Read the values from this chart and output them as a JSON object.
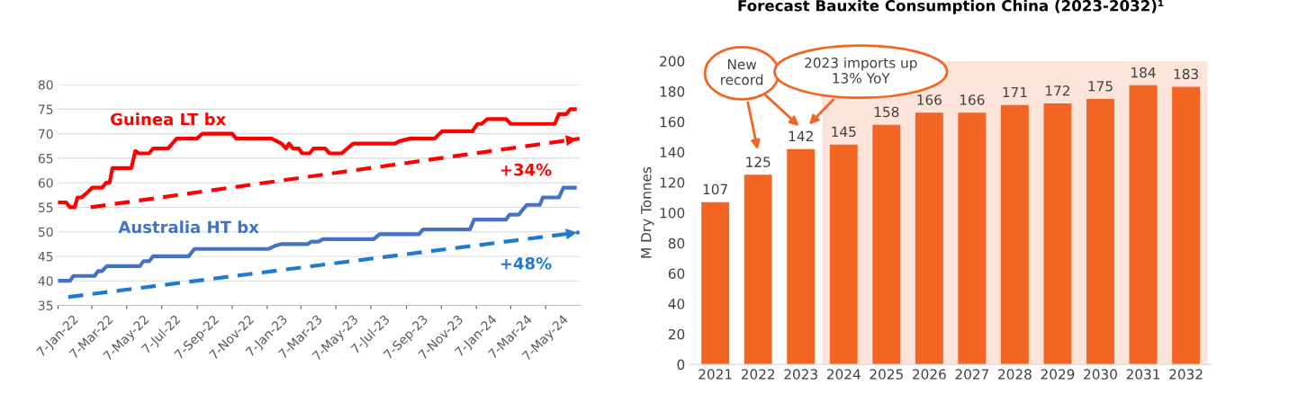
{
  "chart_data": [
    {
      "type": "line",
      "xlim": [
        "2022-01-07",
        "2024-07-06"
      ],
      "ylim": [
        35,
        80
      ],
      "yticks": [
        35,
        40,
        45,
        50,
        55,
        60,
        65,
        70,
        75,
        80
      ],
      "xticks": [
        {
          "value": "2022-01-07",
          "label": "7-Jan-22"
        },
        {
          "value": "2022-03-07",
          "label": "7-Mar-22"
        },
        {
          "value": "2022-05-07",
          "label": "7-May-22"
        },
        {
          "value": "2022-07-07",
          "label": "7-Jul-22"
        },
        {
          "value": "2022-09-07",
          "label": "7-Sep-22"
        },
        {
          "value": "2022-11-07",
          "label": "7-Nov-22"
        },
        {
          "value": "2023-01-07",
          "label": "7-Jan-23"
        },
        {
          "value": "2023-03-07",
          "label": "7-Mar-23"
        },
        {
          "value": "2023-05-07",
          "label": "7-May-23"
        },
        {
          "value": "2023-07-07",
          "label": "7-Jul-23"
        },
        {
          "value": "2023-09-07",
          "label": "7-Sep-23"
        },
        {
          "value": "2023-11-07",
          "label": "7-Nov-23"
        },
        {
          "value": "2024-01-07",
          "label": "7-Jan-24"
        },
        {
          "value": "2024-03-07",
          "label": "7-Mar-24"
        },
        {
          "value": "2024-05-07",
          "label": "7-May-24"
        }
      ],
      "grid": "y",
      "line_style": "solid",
      "marker": "none",
      "series": [
        {
          "name": "Guinea LT bx",
          "color": "#ff0000",
          "x": [
            "2022-01-07",
            "2022-01-21",
            "2022-01-28",
            "2022-02-05",
            "2022-02-10",
            "2022-02-17",
            "2022-02-27",
            "2022-03-08",
            "2022-03-25",
            "2022-04-01",
            "2022-04-07",
            "2022-04-12",
            "2022-05-15",
            "2022-05-22",
            "2022-05-28",
            "2022-06-15",
            "2022-06-22",
            "2022-07-18",
            "2022-08-02",
            "2022-09-06",
            "2022-09-16",
            "2022-11-07",
            "2022-11-14",
            "2023-01-15",
            "2023-02-01",
            "2023-02-09",
            "2023-02-14",
            "2023-02-21",
            "2023-03-03",
            "2023-03-09",
            "2023-03-22",
            "2023-03-29",
            "2023-04-18",
            "2023-04-26",
            "2023-05-17",
            "2023-05-27",
            "2023-06-06",
            "2023-08-18",
            "2023-08-26",
            "2023-09-13",
            "2023-10-26",
            "2023-11-08",
            "2023-12-31",
            "2024-01-09",
            "2024-01-16",
            "2024-01-26",
            "2024-02-28",
            "2024-03-07",
            "2024-05-23",
            "2024-05-30",
            "2024-06-12",
            "2024-06-19",
            "2024-06-27"
          ],
          "values": [
            56,
            56,
            55,
            55,
            57,
            57,
            58,
            59,
            59,
            60,
            60,
            63,
            63,
            66.5,
            66,
            66,
            67,
            67,
            69,
            69,
            70,
            70,
            69,
            69,
            68,
            67,
            68,
            67,
            67,
            66,
            66,
            67,
            67,
            66,
            66,
            67,
            68,
            68,
            68.5,
            69,
            69,
            70.5,
            70.5,
            72,
            72,
            73,
            73,
            72,
            72,
            74,
            74,
            75,
            75
          ]
        },
        {
          "name": "Australia HT bx",
          "color": "#4472c4",
          "x": [
            "2022-01-07",
            "2022-01-28",
            "2022-02-03",
            "2022-03-12",
            "2022-03-18",
            "2022-03-25",
            "2022-04-02",
            "2022-05-30",
            "2022-06-05",
            "2022-06-15",
            "2022-06-22",
            "2022-08-23",
            "2022-09-02",
            "2023-01-09",
            "2023-01-22",
            "2023-02-01",
            "2023-03-19",
            "2023-03-25",
            "2023-04-07",
            "2023-04-14",
            "2023-07-12",
            "2023-07-22",
            "2023-09-29",
            "2023-10-06",
            "2023-12-27",
            "2024-01-03",
            "2024-02-28",
            "2024-03-05",
            "2024-03-21",
            "2024-04-04",
            "2024-04-27",
            "2024-05-02",
            "2024-05-30",
            "2024-06-07",
            "2024-06-27"
          ],
          "values": [
            40,
            40,
            41,
            41,
            42,
            42,
            43,
            43,
            44,
            44,
            45,
            45,
            46.5,
            46.5,
            47.2,
            47.5,
            47.5,
            48,
            48,
            48.5,
            48.5,
            49.5,
            49.5,
            50.5,
            50.5,
            52.5,
            52.5,
            53.5,
            53.5,
            55.5,
            55.5,
            57,
            57,
            59,
            59
          ]
        },
        {
          "color": "#ff0000",
          "line_style": "dashed",
          "x": [
            "2022-03-05",
            "2024-07-05"
          ],
          "values": [
            55,
            69
          ]
        },
        {
          "color": "#1f7ad0",
          "line_style": "dashed",
          "x": [
            "2022-01-25",
            "2024-07-05"
          ],
          "values": [
            36.7,
            49.9
          ]
        }
      ],
      "annotations": [
        "+34%",
        "+48%"
      ]
    },
    {
      "type": "bar",
      "title": "Forecast Bauxite Consumption China (2023-2032)¹",
      "ylabel": "M Dry Tonnes",
      "categories": [
        "2021",
        "2022",
        "2023",
        "2024",
        "2025",
        "2026",
        "2027",
        "2028",
        "2029",
        "2030",
        "2031",
        "2032"
      ],
      "values": [
        107,
        125,
        142,
        145,
        158,
        166,
        166,
        171,
        172,
        175,
        184,
        183
      ],
      "color": "#f26522",
      "ylim": [
        0,
        200
      ],
      "yticks": [
        0,
        20,
        40,
        60,
        80,
        100,
        120,
        140,
        160,
        180,
        200
      ],
      "data_labels": true,
      "grid": false,
      "bands": [
        {
          "axis": "x",
          "from": "2024",
          "to": "2032",
          "color": "#fce4da"
        }
      ],
      "annotations": [
        "New\nrecord",
        "2023 imports up\n13% YoY"
      ]
    }
  ]
}
